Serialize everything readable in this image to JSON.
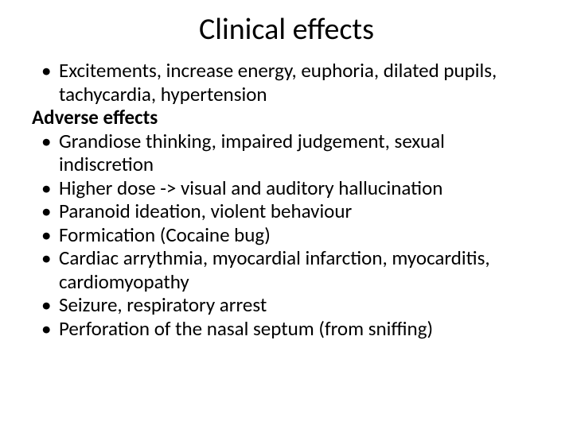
{
  "title": "Clinical effects",
  "item1": "Excitements, increase energy, euphoria, dilated pupils, tachycardia, hypertension",
  "subheading": "Adverse effects",
  "item2": "Grandiose thinking, impaired judgement, sexual indiscretion",
  "item3": "Higher dose -> visual and auditory hallucination",
  "item4": "Paranoid ideation, violent behaviour",
  "item5": "Formication (Cocaine bug)",
  "item6": "Cardiac arrythmia, myocardial infarction, myocarditis, cardiomyopathy",
  "item7": "Seizure, respiratory arrest",
  "item8": "Perforation of the nasal septum (from sniffing)",
  "bullet_char": "•",
  "colors": {
    "background": "#ffffff",
    "text": "#000000"
  },
  "fonts": {
    "title_size": 38,
    "body_size": 25,
    "family": "Calibri"
  }
}
